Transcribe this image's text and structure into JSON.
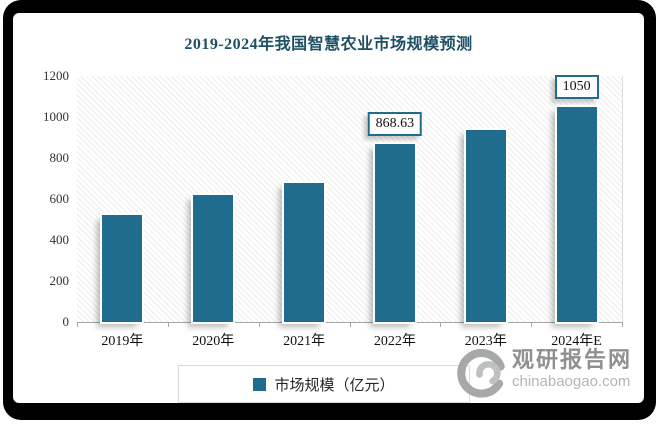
{
  "title": "2019-2024年我国智慧农业市场规模预测",
  "chart_data": {
    "type": "bar",
    "title": "2019-2024年我国智慧农业市场规模预测",
    "categories": [
      "2019年",
      "2020年",
      "2021年",
      "2022年",
      "2023年",
      "2024年E"
    ],
    "series": [
      {
        "name": "市场规模（亿元）",
        "values": [
          520,
          620,
          680,
          868.63,
          935,
          1050
        ]
      }
    ],
    "data_labels": [
      "",
      "",
      "",
      "868.63",
      "",
      "1050"
    ],
    "xlabel": "",
    "ylabel": "",
    "ylim": [
      0,
      1200
    ],
    "yticks": [
      0,
      200,
      400,
      600,
      800,
      1000,
      1200
    ],
    "grid": false,
    "legend_position": "bottom",
    "plot_background": "diagonal-hatch"
  },
  "legend": {
    "label": "市场规模（亿元）"
  },
  "watermark": {
    "name": "观研报告网",
    "domain": "chinabaogao.com",
    "logo": "swirl-logo"
  },
  "colors": {
    "bar": "#1f6c8e",
    "title": "#1e5064",
    "frame": "#000000",
    "axis": "#a6a6a6",
    "data_label_border": "#1f6c8e",
    "legend_border": "#d9d9d9",
    "watermark_gray": "#8f9091",
    "watermark_light_gray": "#b5b5b5"
  }
}
